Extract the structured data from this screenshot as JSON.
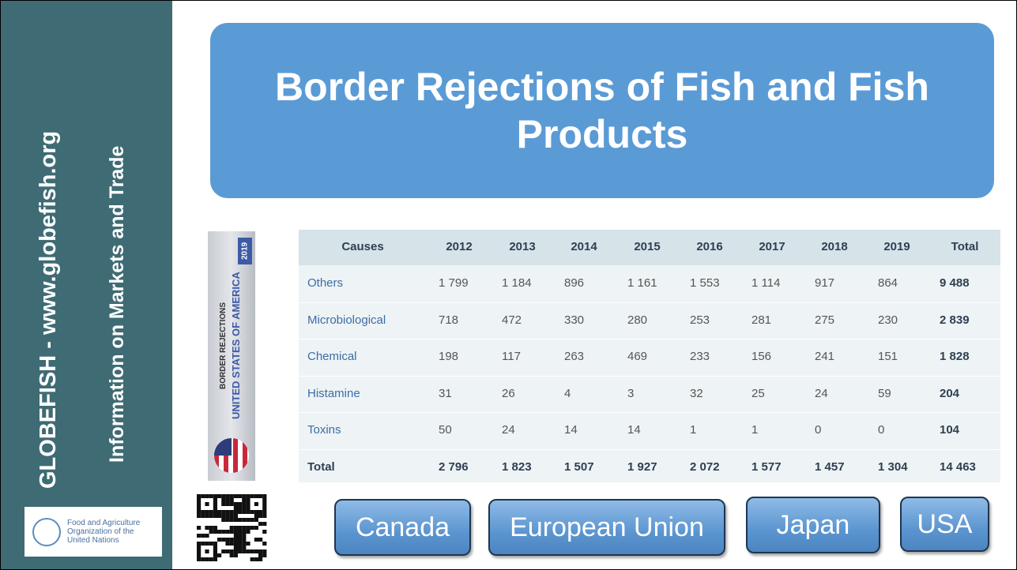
{
  "sidebar": {
    "site": "GLOBEFISH - www.globefish.org",
    "tagline": "Information on Markets and Trade",
    "org": "Food and Agriculture Organization of the United Nations"
  },
  "header": {
    "title": "Border Rejections of Fish and Fish Products"
  },
  "cover": {
    "year": "2019",
    "label": "BORDER REJECTIONS",
    "country": "UNITED STATES OF AMERICA"
  },
  "table": {
    "columns": [
      "Causes",
      "2012",
      "2013",
      "2014",
      "2015",
      "2016",
      "2017",
      "2018",
      "2019",
      "Total"
    ],
    "rows": [
      [
        "Others",
        "1 799",
        "1 184",
        "896",
        "1 161",
        "1 553",
        "1 114",
        "917",
        "864",
        "9 488"
      ],
      [
        "Microbiological",
        "718",
        "472",
        "330",
        "280",
        "253",
        "281",
        "275",
        "230",
        "2 839"
      ],
      [
        "Chemical",
        "198",
        "117",
        "263",
        "469",
        "233",
        "156",
        "241",
        "151",
        "1 828"
      ],
      [
        "Histamine",
        "31",
        "26",
        "4",
        "3",
        "32",
        "25",
        "24",
        "59",
        "204"
      ],
      [
        "Toxins",
        "50",
        "24",
        "14",
        "14",
        "1",
        "1",
        "0",
        "0",
        "104"
      ],
      [
        "Total",
        "2 796",
        "1 823",
        "1 507",
        "1 927",
        "2 072",
        "1 577",
        "1 457",
        "1 304",
        "14 463"
      ]
    ]
  },
  "buttons": [
    "Canada",
    "European Union",
    "Japan",
    "USA"
  ]
}
